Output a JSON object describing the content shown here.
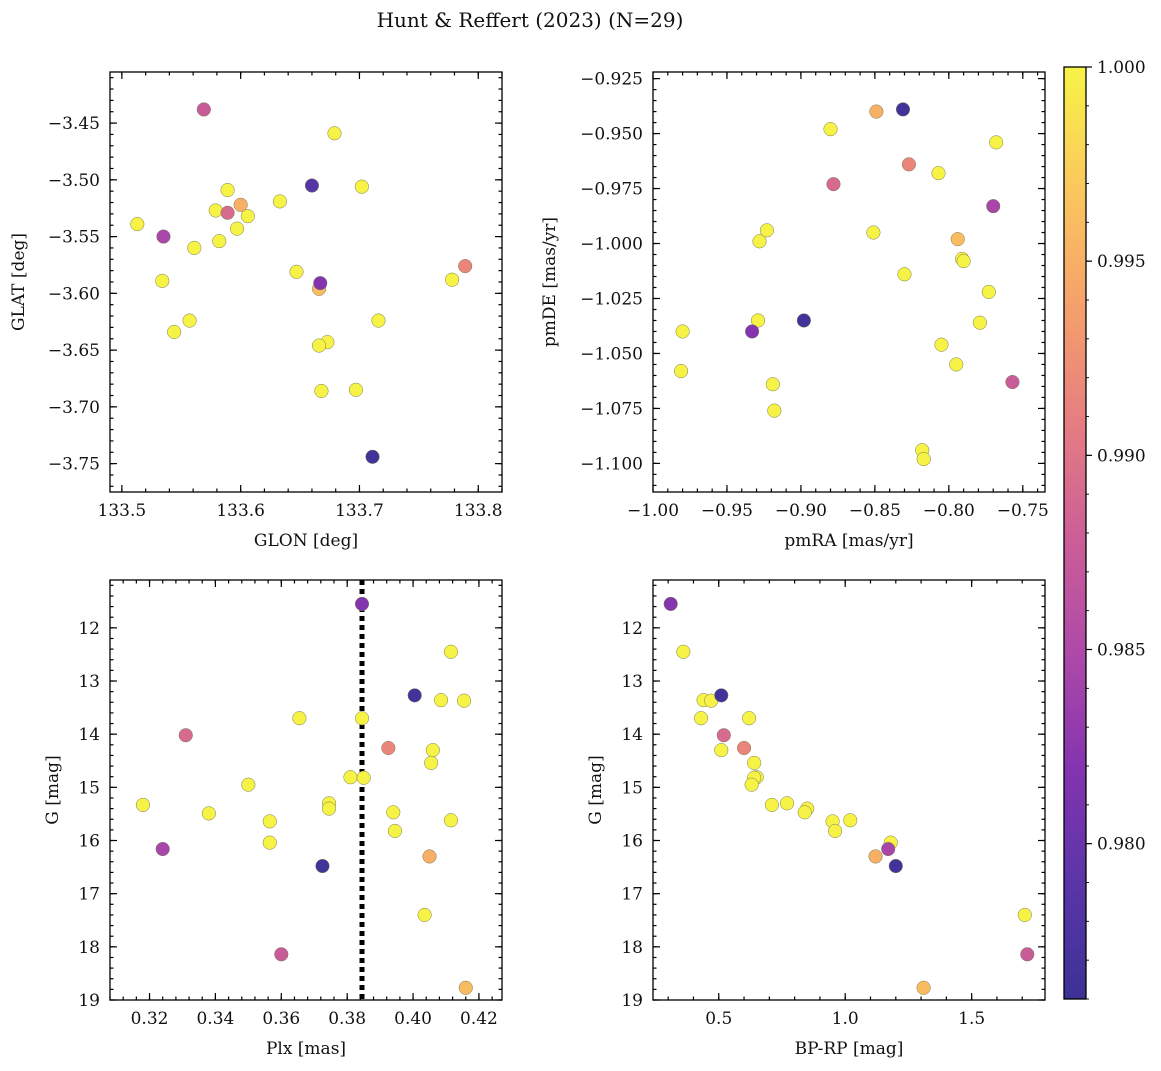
{
  "figure": {
    "title": "Hunt & Reffert (2023) (N=29)"
  },
  "colorbar": {
    "min": 0.976,
    "max": 1.0,
    "ticks": [
      0.98,
      0.985,
      0.99,
      0.995,
      1.0
    ],
    "tick_labels": [
      "0.980",
      "0.985",
      "0.990",
      "0.995",
      "1.000"
    ],
    "colormap": "plasma",
    "stops": [
      "#3b3296",
      "#5b35a8",
      "#8534b0",
      "#b04aa8",
      "#cd5f96",
      "#e77f80",
      "#f6a26a",
      "#fbc95d",
      "#f7f346"
    ]
  },
  "chart_data": [
    {
      "type": "scatter",
      "xlabel": "GLON [deg]",
      "ylabel": "GLAT [deg]",
      "xlim": [
        133.49,
        133.82
      ],
      "ylim": [
        -3.775,
        -3.405
      ],
      "y_inverted": false,
      "xticks": [
        133.5,
        133.6,
        133.7,
        133.8
      ],
      "xtick_labels": [
        "133.5",
        "133.6",
        "133.7",
        "133.8"
      ],
      "yticks": [
        -3.45,
        -3.5,
        -3.55,
        -3.6,
        -3.65,
        -3.7,
        -3.75
      ],
      "ytick_labels": [
        "−3.45",
        "−3.50",
        "−3.55",
        "−3.60",
        "−3.65",
        "−3.70",
        "−3.75"
      ],
      "points": [
        {
          "x": 133.569,
          "y": -3.438,
          "c": 0.9875
        },
        {
          "x": 133.679,
          "y": -3.459,
          "c": 1.0
        },
        {
          "x": 133.66,
          "y": -3.505,
          "c": 0.9785
        },
        {
          "x": 133.702,
          "y": -3.506,
          "c": 1.0
        },
        {
          "x": 133.589,
          "y": -3.509,
          "c": 1.0
        },
        {
          "x": 133.633,
          "y": -3.519,
          "c": 1.0
        },
        {
          "x": 133.6,
          "y": -3.522,
          "c": 0.995
        },
        {
          "x": 133.579,
          "y": -3.527,
          "c": 1.0
        },
        {
          "x": 133.589,
          "y": -3.529,
          "c": 0.989
        },
        {
          "x": 133.606,
          "y": -3.532,
          "c": 1.0
        },
        {
          "x": 133.513,
          "y": -3.539,
          "c": 1.0
        },
        {
          "x": 133.597,
          "y": -3.543,
          "c": 1.0
        },
        {
          "x": 133.535,
          "y": -3.55,
          "c": 0.9845
        },
        {
          "x": 133.582,
          "y": -3.554,
          "c": 1.0
        },
        {
          "x": 133.561,
          "y": -3.56,
          "c": 1.0
        },
        {
          "x": 133.789,
          "y": -3.576,
          "c": 0.9915
        },
        {
          "x": 133.647,
          "y": -3.581,
          "c": 1.0
        },
        {
          "x": 133.534,
          "y": -3.589,
          "c": 1.0
        },
        {
          "x": 133.778,
          "y": -3.588,
          "c": 1.0
        },
        {
          "x": 133.667,
          "y": -3.591,
          "c": 0.982
        },
        {
          "x": 133.666,
          "y": -3.596,
          "c": 0.996
        },
        {
          "x": 133.557,
          "y": -3.624,
          "c": 1.0
        },
        {
          "x": 133.716,
          "y": -3.624,
          "c": 1.0
        },
        {
          "x": 133.544,
          "y": -3.634,
          "c": 1.0
        },
        {
          "x": 133.673,
          "y": -3.643,
          "c": 1.0
        },
        {
          "x": 133.666,
          "y": -3.646,
          "c": 1.0
        },
        {
          "x": 133.697,
          "y": -3.685,
          "c": 1.0
        },
        {
          "x": 133.668,
          "y": -3.686,
          "c": 1.0
        },
        {
          "x": 133.711,
          "y": -3.744,
          "c": 0.9765
        }
      ]
    },
    {
      "type": "scatter",
      "xlabel": "pmRA [mas/yr]",
      "ylabel": "pmDE [mas/yr]",
      "xlim": [
        -1.0,
        -0.735
      ],
      "ylim": [
        -1.113,
        -0.922
      ],
      "y_inverted": false,
      "xticks": [
        -1.0,
        -0.95,
        -0.9,
        -0.85,
        -0.8,
        -0.75
      ],
      "xtick_labels": [
        "−1.00",
        "−0.95",
        "−0.90",
        "−0.85",
        "−0.80",
        "−0.75"
      ],
      "yticks": [
        -0.925,
        -0.95,
        -0.975,
        -1.0,
        -1.025,
        -1.05,
        -1.075,
        -1.1
      ],
      "ytick_labels": [
        "−0.925",
        "−0.950",
        "−0.975",
        "−1.000",
        "−1.025",
        "−1.050",
        "−1.075",
        "−1.100"
      ],
      "points": [
        {
          "x": -0.831,
          "y": -0.939,
          "c": 0.9765
        },
        {
          "x": -0.849,
          "y": -0.94,
          "c": 0.995
        },
        {
          "x": -0.88,
          "y": -0.948,
          "c": 1.0
        },
        {
          "x": -0.768,
          "y": -0.954,
          "c": 1.0
        },
        {
          "x": -0.827,
          "y": -0.964,
          "c": 0.9915
        },
        {
          "x": -0.807,
          "y": -0.968,
          "c": 1.0
        },
        {
          "x": -0.878,
          "y": -0.973,
          "c": 0.989
        },
        {
          "x": -0.77,
          "y": -0.983,
          "c": 0.9845
        },
        {
          "x": -0.923,
          "y": -0.994,
          "c": 1.0
        },
        {
          "x": -0.851,
          "y": -0.995,
          "c": 1.0
        },
        {
          "x": -0.794,
          "y": -0.998,
          "c": 0.996
        },
        {
          "x": -0.928,
          "y": -0.999,
          "c": 1.0
        },
        {
          "x": -0.791,
          "y": -1.007,
          "c": 1.0
        },
        {
          "x": -0.79,
          "y": -1.008,
          "c": 1.0
        },
        {
          "x": -0.83,
          "y": -1.014,
          "c": 1.0
        },
        {
          "x": -0.773,
          "y": -1.022,
          "c": 1.0
        },
        {
          "x": -0.929,
          "y": -1.035,
          "c": 1.0
        },
        {
          "x": -0.898,
          "y": -1.035,
          "c": 0.9765
        },
        {
          "x": -0.779,
          "y": -1.036,
          "c": 1.0
        },
        {
          "x": -0.98,
          "y": -1.04,
          "c": 1.0
        },
        {
          "x": -0.933,
          "y": -1.04,
          "c": 0.982
        },
        {
          "x": -0.805,
          "y": -1.046,
          "c": 1.0
        },
        {
          "x": -0.795,
          "y": -1.055,
          "c": 1.0
        },
        {
          "x": -0.981,
          "y": -1.058,
          "c": 1.0
        },
        {
          "x": -0.757,
          "y": -1.063,
          "c": 0.9875
        },
        {
          "x": -0.919,
          "y": -1.064,
          "c": 1.0
        },
        {
          "x": -0.918,
          "y": -1.076,
          "c": 1.0
        },
        {
          "x": -0.818,
          "y": -1.094,
          "c": 1.0
        },
        {
          "x": -0.817,
          "y": -1.098,
          "c": 1.0
        }
      ]
    },
    {
      "type": "scatter",
      "xlabel": "Plx [mas]",
      "ylabel": "G [mag]",
      "xlim": [
        0.308,
        0.427
      ],
      "ylim": [
        19.0,
        11.1
      ],
      "y_inverted": true,
      "xticks": [
        0.32,
        0.34,
        0.36,
        0.38,
        0.4,
        0.42
      ],
      "xtick_labels": [
        "0.32",
        "0.34",
        "0.36",
        "0.38",
        "0.40",
        "0.42"
      ],
      "yticks": [
        12,
        13,
        14,
        15,
        16,
        17,
        18,
        19
      ],
      "ytick_labels": [
        "12",
        "13",
        "14",
        "15",
        "16",
        "17",
        "18",
        "19"
      ],
      "vline": {
        "x": 0.3845
      },
      "points": [
        {
          "x": 0.3845,
          "y": 11.55,
          "c": 0.982
        },
        {
          "x": 0.4115,
          "y": 12.45,
          "c": 1.0
        },
        {
          "x": 0.4005,
          "y": 13.27,
          "c": 0.9765
        },
        {
          "x": 0.4085,
          "y": 13.36,
          "c": 1.0
        },
        {
          "x": 0.4155,
          "y": 13.37,
          "c": 1.0
        },
        {
          "x": 0.3655,
          "y": 13.7,
          "c": 1.0
        },
        {
          "x": 0.3845,
          "y": 13.7,
          "c": 1.0
        },
        {
          "x": 0.331,
          "y": 14.02,
          "c": 0.989
        },
        {
          "x": 0.3925,
          "y": 14.26,
          "c": 0.9915
        },
        {
          "x": 0.406,
          "y": 14.3,
          "c": 1.0
        },
        {
          "x": 0.4055,
          "y": 14.54,
          "c": 1.0
        },
        {
          "x": 0.381,
          "y": 14.81,
          "c": 1.0
        },
        {
          "x": 0.385,
          "y": 14.82,
          "c": 1.0
        },
        {
          "x": 0.35,
          "y": 14.95,
          "c": 1.0
        },
        {
          "x": 0.3745,
          "y": 15.3,
          "c": 1.0
        },
        {
          "x": 0.318,
          "y": 15.33,
          "c": 1.0
        },
        {
          "x": 0.3745,
          "y": 15.4,
          "c": 1.0
        },
        {
          "x": 0.394,
          "y": 15.47,
          "c": 1.0
        },
        {
          "x": 0.338,
          "y": 15.49,
          "c": 1.0
        },
        {
          "x": 0.4115,
          "y": 15.62,
          "c": 1.0
        },
        {
          "x": 0.3565,
          "y": 15.64,
          "c": 1.0
        },
        {
          "x": 0.3945,
          "y": 15.82,
          "c": 1.0
        },
        {
          "x": 0.3565,
          "y": 16.04,
          "c": 1.0
        },
        {
          "x": 0.324,
          "y": 16.16,
          "c": 0.9845
        },
        {
          "x": 0.405,
          "y": 16.3,
          "c": 0.995
        },
        {
          "x": 0.3725,
          "y": 16.48,
          "c": 0.9765
        },
        {
          "x": 0.4035,
          "y": 17.4,
          "c": 1.0
        },
        {
          "x": 0.36,
          "y": 18.14,
          "c": 0.9875
        },
        {
          "x": 0.416,
          "y": 18.77,
          "c": 0.996
        }
      ]
    },
    {
      "type": "scatter",
      "xlabel": "BP-RP [mag]",
      "ylabel": "G [mag]",
      "xlim": [
        0.24,
        1.79
      ],
      "ylim": [
        19.0,
        11.1
      ],
      "y_inverted": true,
      "xticks": [
        0.5,
        1.0,
        1.5
      ],
      "xtick_labels": [
        "0.5",
        "1.0",
        "1.5"
      ],
      "yticks": [
        12,
        13,
        14,
        15,
        16,
        17,
        18,
        19
      ],
      "ytick_labels": [
        "12",
        "13",
        "14",
        "15",
        "16",
        "17",
        "18",
        "19"
      ],
      "points": [
        {
          "x": 0.31,
          "y": 11.55,
          "c": 0.982
        },
        {
          "x": 0.36,
          "y": 12.45,
          "c": 1.0
        },
        {
          "x": 0.51,
          "y": 13.27,
          "c": 0.9765
        },
        {
          "x": 0.44,
          "y": 13.36,
          "c": 1.0
        },
        {
          "x": 0.47,
          "y": 13.37,
          "c": 1.0
        },
        {
          "x": 0.43,
          "y": 13.7,
          "c": 1.0
        },
        {
          "x": 0.62,
          "y": 13.7,
          "c": 1.0
        },
        {
          "x": 0.52,
          "y": 14.02,
          "c": 0.989
        },
        {
          "x": 0.6,
          "y": 14.26,
          "c": 0.9915
        },
        {
          "x": 0.51,
          "y": 14.3,
          "c": 1.0
        },
        {
          "x": 0.64,
          "y": 14.54,
          "c": 1.0
        },
        {
          "x": 0.65,
          "y": 14.81,
          "c": 1.0
        },
        {
          "x": 0.64,
          "y": 14.82,
          "c": 1.0
        },
        {
          "x": 0.63,
          "y": 14.95,
          "c": 1.0
        },
        {
          "x": 0.77,
          "y": 15.3,
          "c": 1.0
        },
        {
          "x": 0.71,
          "y": 15.33,
          "c": 1.0
        },
        {
          "x": 0.85,
          "y": 15.4,
          "c": 1.0
        },
        {
          "x": 0.84,
          "y": 15.47,
          "c": 1.0
        },
        {
          "x": 1.02,
          "y": 15.62,
          "c": 1.0
        },
        {
          "x": 0.95,
          "y": 15.64,
          "c": 1.0
        },
        {
          "x": 0.96,
          "y": 15.82,
          "c": 1.0
        },
        {
          "x": 1.18,
          "y": 16.04,
          "c": 1.0
        },
        {
          "x": 1.17,
          "y": 16.16,
          "c": 0.9845
        },
        {
          "x": 1.12,
          "y": 16.3,
          "c": 0.995
        },
        {
          "x": 1.2,
          "y": 16.48,
          "c": 0.9765
        },
        {
          "x": 1.71,
          "y": 17.4,
          "c": 1.0
        },
        {
          "x": 1.72,
          "y": 18.14,
          "c": 0.9875
        },
        {
          "x": 1.31,
          "y": 18.77,
          "c": 0.996
        }
      ]
    }
  ]
}
